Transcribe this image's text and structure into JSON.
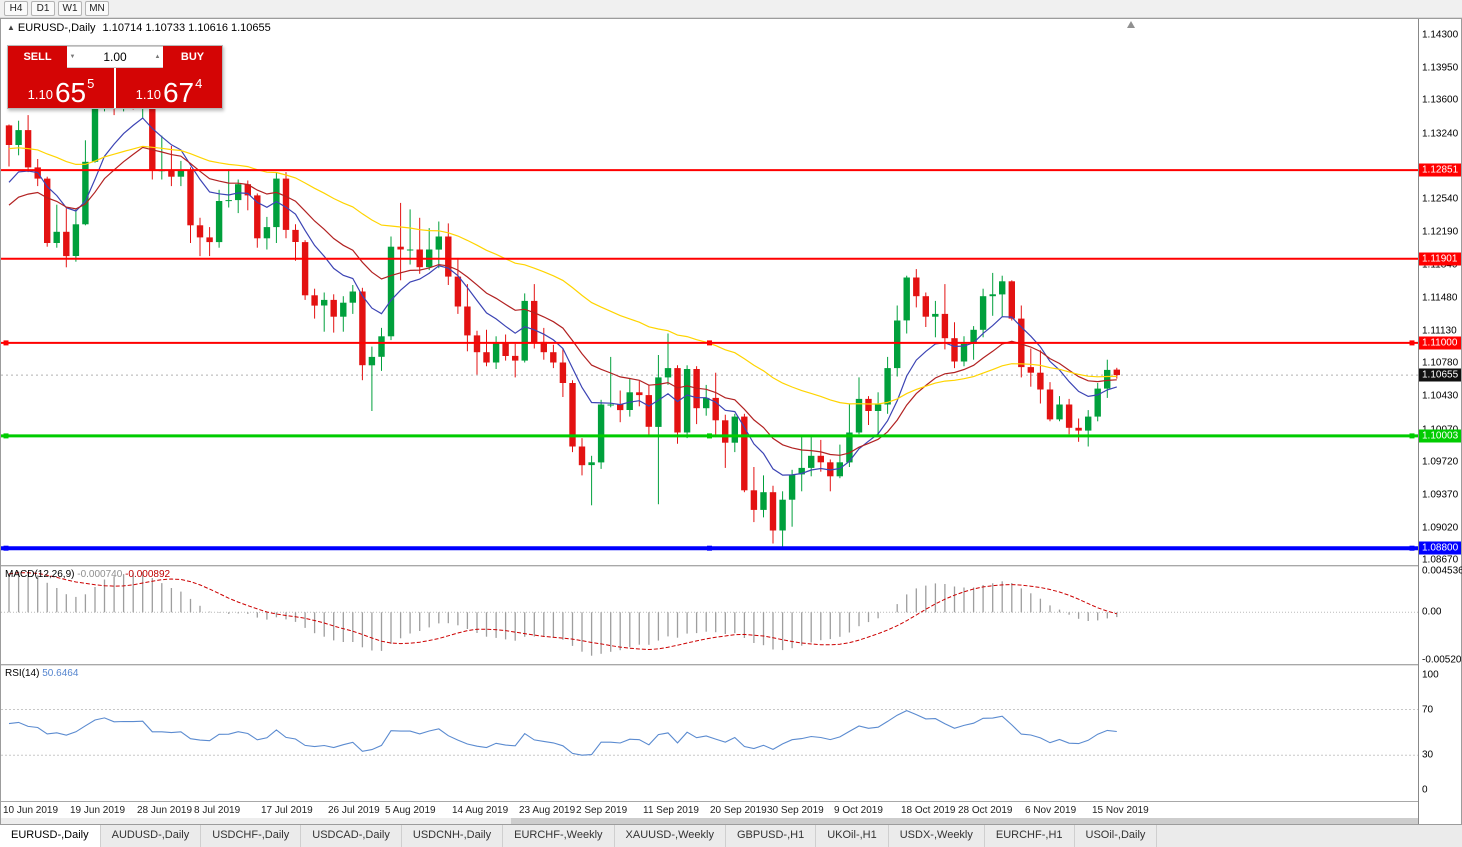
{
  "toolbar": {
    "timeframes": [
      "H4",
      "D1",
      "W1",
      "MN"
    ]
  },
  "icons": {
    "volume_up": "▲",
    "volume_down": "▼",
    "symbol_marker": "▲"
  },
  "chart": {
    "symbol": "EURUSD-,Daily",
    "ohlc": "1.10714 1.10733 1.10616 1.10655"
  },
  "trade_panel": {
    "sell_label": "SELL",
    "buy_label": "BUY",
    "volume": "1.00",
    "sell_price": {
      "prefix": "1.10",
      "big": "65",
      "sup": "5"
    },
    "buy_price": {
      "prefix": "1.10",
      "big": "67",
      "sup": "4"
    }
  },
  "macd": {
    "name": "MACD(12,26,9)",
    "main_value": "-0.000740",
    "signal_value": "-0.000892",
    "axis_labels": [
      "0.004536",
      "0.00",
      "-0.005205"
    ]
  },
  "rsi": {
    "name": "RSI(14)",
    "value": "50.6464",
    "axis_labels": [
      "100",
      "70",
      "30",
      "0"
    ]
  },
  "tabs": [
    {
      "label": "EURUSD-,Daily",
      "active": true
    },
    {
      "label": "AUDUSD-,Daily",
      "active": false
    },
    {
      "label": "USDCHF-,Daily",
      "active": false
    },
    {
      "label": "USDCAD-,Daily",
      "active": false
    },
    {
      "label": "USDCNH-,Daily",
      "active": false
    },
    {
      "label": "EURCHF-,Weekly",
      "active": false
    },
    {
      "label": "XAUUSD-,Weekly",
      "active": false
    },
    {
      "label": "GBPUSD-,H1",
      "active": false
    },
    {
      "label": "UKOil-,H1",
      "active": false
    },
    {
      "label": "USDX-,Weekly",
      "active": false
    },
    {
      "label": "EURCHF-,H1",
      "active": false
    },
    {
      "label": "USOil-,Daily",
      "active": false
    }
  ],
  "colors": {
    "bull": "#00A03C",
    "bear": "#E31212",
    "macd_bar": "#9E9E9E",
    "macd_signal": "#CC0000",
    "rsi_line": "#5B8BD0"
  },
  "chart_data": {
    "type": "candlestick",
    "symbol": "EURUSD",
    "timeframe": "Daily",
    "price_range": [
      1.0862,
      1.1447
    ],
    "axis_ticks": [
      "1.14300",
      "1.13950",
      "1.13600",
      "1.13240",
      "1.12540",
      "1.12190",
      "1.11840",
      "1.11480",
      "1.11130",
      "1.10780",
      "1.10430",
      "1.10070",
      "1.09720",
      "1.09370",
      "1.09020",
      "1.08670"
    ],
    "hlines": [
      {
        "price": 1.12851,
        "label": "1.12851",
        "color": "#FF0000",
        "width": 2,
        "selected": false
      },
      {
        "price": 1.11901,
        "label": "1.11901",
        "color": "#FF0000",
        "width": 2,
        "selected": false
      },
      {
        "price": 1.11,
        "label": "1.11000",
        "color": "#FF0000",
        "width": 2,
        "selected": true
      },
      {
        "price": 1.10003,
        "label": "1.10003",
        "color": "#00CC00",
        "width": 3,
        "selected": true
      },
      {
        "price": 1.088,
        "label": "1.08800",
        "color": "#0000FF",
        "width": 4,
        "selected": true
      }
    ],
    "current_price": {
      "value": 1.10655,
      "label": "1.10655"
    },
    "mas": [
      {
        "period": 9,
        "seed": 1.1262,
        "color": "#3C44B4"
      },
      {
        "period": 18,
        "seed": 1.124,
        "color": "#B22222"
      },
      {
        "period": 45,
        "seed": 1.1308,
        "color": "#FFD400"
      }
    ],
    "macd": {
      "fast": 12,
      "slow": 26,
      "signal": 9,
      "seed_fast": 1.1245,
      "seed_slow": 1.1205,
      "ymax": 0.005,
      "ymin": -0.0057
    },
    "rsi": {
      "period": 14,
      "seed_gain": 0.003,
      "seed_loss": 0.0022,
      "levels": [
        70,
        30
      ]
    },
    "date_ticks": [
      {
        "label": "10 Jun 2019",
        "idx": 0
      },
      {
        "label": "19 Jun 2019",
        "idx": 7
      },
      {
        "label": "28 Jun 2019",
        "idx": 14
      },
      {
        "label": "8 Jul 2019",
        "idx": 20
      },
      {
        "label": "17 Jul 2019",
        "idx": 27
      },
      {
        "label": "26 Jul 2019",
        "idx": 34
      },
      {
        "label": "5 Aug 2019",
        "idx": 40
      },
      {
        "label": "14 Aug 2019",
        "idx": 47
      },
      {
        "label": "23 Aug 2019",
        "idx": 54
      },
      {
        "label": "2 Sep 2019",
        "idx": 60
      },
      {
        "label": "11 Sep 2019",
        "idx": 67
      },
      {
        "label": "20 Sep 2019",
        "idx": 74
      },
      {
        "label": "30 Sep 2019",
        "idx": 80
      },
      {
        "label": "9 Oct 2019",
        "idx": 87
      },
      {
        "label": "18 Oct 2019",
        "idx": 94
      },
      {
        "label": "28 Oct 2019",
        "idx": 100
      },
      {
        "label": "6 Nov 2019",
        "idx": 107
      },
      {
        "label": "15 Nov 2019",
        "idx": 114
      }
    ],
    "candles": [
      [
        1.1333,
        1.1334,
        1.1289,
        1.1312
      ],
      [
        1.1312,
        1.1338,
        1.1301,
        1.1328
      ],
      [
        1.1328,
        1.1344,
        1.1283,
        1.1288
      ],
      [
        1.1288,
        1.1297,
        1.1268,
        1.1276
      ],
      [
        1.1276,
        1.1278,
        1.1203,
        1.1207
      ],
      [
        1.1207,
        1.1248,
        1.1202,
        1.1219
      ],
      [
        1.1219,
        1.1244,
        1.1181,
        1.1193
      ],
      [
        1.1193,
        1.1243,
        1.1187,
        1.1227
      ],
      [
        1.1227,
        1.1317,
        1.1226,
        1.1294
      ],
      [
        1.1294,
        1.1378,
        1.1293,
        1.1369
      ],
      [
        1.1369,
        1.1403,
        1.1348,
        1.1399
      ],
      [
        1.1399,
        1.1412,
        1.1344,
        1.1365
      ],
      [
        1.1365,
        1.1391,
        1.1348,
        1.1369
      ],
      [
        1.1369,
        1.1388,
        1.135,
        1.1368
      ],
      [
        1.1368,
        1.1392,
        1.134,
        1.1373
      ],
      [
        1.1365,
        1.137,
        1.1275,
        1.1285
      ],
      [
        1.1285,
        1.1322,
        1.1275,
        1.1285
      ],
      [
        1.1285,
        1.1311,
        1.1268,
        1.1278
      ],
      [
        1.1278,
        1.1295,
        1.1268,
        1.1285
      ],
      [
        1.1285,
        1.1288,
        1.1207,
        1.1226
      ],
      [
        1.1226,
        1.1234,
        1.1193,
        1.1213
      ],
      [
        1.1213,
        1.1224,
        1.1193,
        1.1208
      ],
      [
        1.1208,
        1.1264,
        1.1202,
        1.1252
      ],
      [
        1.1252,
        1.1286,
        1.1245,
        1.1253
      ],
      [
        1.1253,
        1.1275,
        1.1239,
        1.127
      ],
      [
        1.127,
        1.1274,
        1.1242,
        1.1258
      ],
      [
        1.1258,
        1.126,
        1.1202,
        1.1212
      ],
      [
        1.1212,
        1.1235,
        1.12,
        1.1224
      ],
      [
        1.1224,
        1.1282,
        1.1207,
        1.1276
      ],
      [
        1.1276,
        1.1283,
        1.1212,
        1.1221
      ],
      [
        1.1221,
        1.1227,
        1.1188,
        1.1208
      ],
      [
        1.1208,
        1.121,
        1.1146,
        1.1151
      ],
      [
        1.1151,
        1.1158,
        1.1126,
        1.114
      ],
      [
        1.114,
        1.1154,
        1.1112,
        1.1146
      ],
      [
        1.1146,
        1.1152,
        1.1111,
        1.1128
      ],
      [
        1.1128,
        1.115,
        1.1112,
        1.1143
      ],
      [
        1.1143,
        1.1162,
        1.1131,
        1.1155
      ],
      [
        1.1155,
        1.1159,
        1.106,
        1.1076
      ],
      [
        1.1076,
        1.1096,
        1.1027,
        1.1085
      ],
      [
        1.1085,
        1.1116,
        1.107,
        1.1107
      ],
      [
        1.1107,
        1.1214,
        1.1103,
        1.1203
      ],
      [
        1.1203,
        1.125,
        1.1167,
        1.12
      ],
      [
        1.12,
        1.1243,
        1.1184,
        1.12
      ],
      [
        1.12,
        1.1234,
        1.1174,
        1.1181
      ],
      [
        1.1181,
        1.1223,
        1.1178,
        1.12
      ],
      [
        1.12,
        1.123,
        1.118,
        1.1214
      ],
      [
        1.1214,
        1.1228,
        1.1162,
        1.1171
      ],
      [
        1.1171,
        1.1191,
        1.1131,
        1.1139
      ],
      [
        1.1139,
        1.1163,
        1.1091,
        1.1108
      ],
      [
        1.1108,
        1.1113,
        1.1066,
        1.109
      ],
      [
        1.109,
        1.1114,
        1.1075,
        1.1079
      ],
      [
        1.1079,
        1.1107,
        1.1072,
        1.11
      ],
      [
        1.11,
        1.1109,
        1.1081,
        1.1086
      ],
      [
        1.1086,
        1.1099,
        1.1063,
        1.1081
      ],
      [
        1.1081,
        1.1153,
        1.1079,
        1.1145
      ],
      [
        1.1145,
        1.1163,
        1.1094,
        1.1101
      ],
      [
        1.1101,
        1.1116,
        1.1082,
        1.109
      ],
      [
        1.109,
        1.1098,
        1.1073,
        1.1079
      ],
      [
        1.1079,
        1.1094,
        1.1042,
        1.1057
      ],
      [
        1.1057,
        1.106,
        1.0983,
        1.0989
      ],
      [
        1.0989,
        1.0998,
        1.0958,
        1.0969
      ],
      [
        1.0969,
        1.0979,
        1.0926,
        1.0972
      ],
      [
        1.0972,
        1.1039,
        1.0965,
        1.1034
      ],
      [
        1.1034,
        1.1085,
        1.1031,
        1.1034
      ],
      [
        1.1034,
        1.1049,
        1.1015,
        1.1028
      ],
      [
        1.1028,
        1.1062,
        1.1021,
        1.1047
      ],
      [
        1.1047,
        1.1059,
        1.1032,
        1.1044
      ],
      [
        1.1044,
        1.1055,
        1.1,
        1.101
      ],
      [
        1.101,
        1.1087,
        1.0927,
        1.1063
      ],
      [
        1.1063,
        1.111,
        1.1055,
        1.1073
      ],
      [
        1.1073,
        1.1076,
        1.0992,
        1.1004
      ],
      [
        1.1004,
        1.1076,
        1.0998,
        1.1072
      ],
      [
        1.1072,
        1.1075,
        1.1013,
        1.103
      ],
      [
        1.103,
        1.1055,
        1.1022,
        1.1041
      ],
      [
        1.1041,
        1.1068,
        1.0999,
        1.1017
      ],
      [
        1.1017,
        1.1023,
        1.0966,
        1.0993
      ],
      [
        1.0993,
        1.1024,
        1.0983,
        1.1021
      ],
      [
        1.1021,
        1.1024,
        1.094,
        1.0942
      ],
      [
        1.0942,
        1.0967,
        1.0908,
        1.0921
      ],
      [
        1.0921,
        1.0958,
        1.0913,
        1.094
      ],
      [
        1.094,
        1.0947,
        1.0885,
        1.0899
      ],
      [
        1.0899,
        1.0941,
        1.0879,
        1.0932
      ],
      [
        1.0932,
        1.0964,
        1.0903,
        1.0959
      ],
      [
        1.0959,
        1.0999,
        1.0941,
        1.0966
      ],
      [
        1.0966,
        1.0999,
        1.0957,
        1.0979
      ],
      [
        1.0979,
        1.0996,
        1.0962,
        1.0972
      ],
      [
        1.0972,
        1.0975,
        1.0941,
        1.0957
      ],
      [
        1.0957,
        1.0991,
        1.0955,
        1.0972
      ],
      [
        1.0972,
        1.1034,
        1.0967,
        1.1004
      ],
      [
        1.1004,
        1.1063,
        1.1002,
        1.104
      ],
      [
        1.104,
        1.1043,
        1.1012,
        1.1027
      ],
      [
        1.1027,
        1.1047,
        1.1001,
        1.1034
      ],
      [
        1.1034,
        1.1085,
        1.1024,
        1.1073
      ],
      [
        1.1073,
        1.114,
        1.1064,
        1.1124
      ],
      [
        1.1124,
        1.1172,
        1.111,
        1.117
      ],
      [
        1.117,
        1.1179,
        1.1138,
        1.115
      ],
      [
        1.115,
        1.1154,
        1.1117,
        1.1128
      ],
      [
        1.1128,
        1.1145,
        1.1106,
        1.1131
      ],
      [
        1.1131,
        1.1163,
        1.1093,
        1.1105
      ],
      [
        1.1105,
        1.1122,
        1.1073,
        1.108
      ],
      [
        1.108,
        1.1107,
        1.1075,
        1.1099
      ],
      [
        1.1099,
        1.1118,
        1.1082,
        1.1114
      ],
      [
        1.1114,
        1.1158,
        1.1106,
        1.115
      ],
      [
        1.115,
        1.1175,
        1.1129,
        1.1152
      ],
      [
        1.1152,
        1.1172,
        1.1128,
        1.1166
      ],
      [
        1.1166,
        1.1167,
        1.1124,
        1.1126
      ],
      [
        1.1126,
        1.114,
        1.1063,
        1.1074
      ],
      [
        1.1074,
        1.1094,
        1.1053,
        1.1068
      ],
      [
        1.1068,
        1.1092,
        1.1035,
        1.105
      ],
      [
        1.105,
        1.1058,
        1.1016,
        1.1018
      ],
      [
        1.1018,
        1.1043,
        1.1016,
        1.1034
      ],
      [
        1.1034,
        1.104,
        1.1002,
        1.1009
      ],
      [
        1.1009,
        1.1019,
        1.0994,
        1.1006
      ],
      [
        1.1006,
        1.1028,
        1.0989,
        1.1021
      ],
      [
        1.1021,
        1.1057,
        1.1016,
        1.1051
      ],
      [
        1.1051,
        1.1082,
        1.1041,
        1.1071
      ],
      [
        1.10714,
        1.10733,
        1.10616,
        1.10655
      ]
    ]
  }
}
